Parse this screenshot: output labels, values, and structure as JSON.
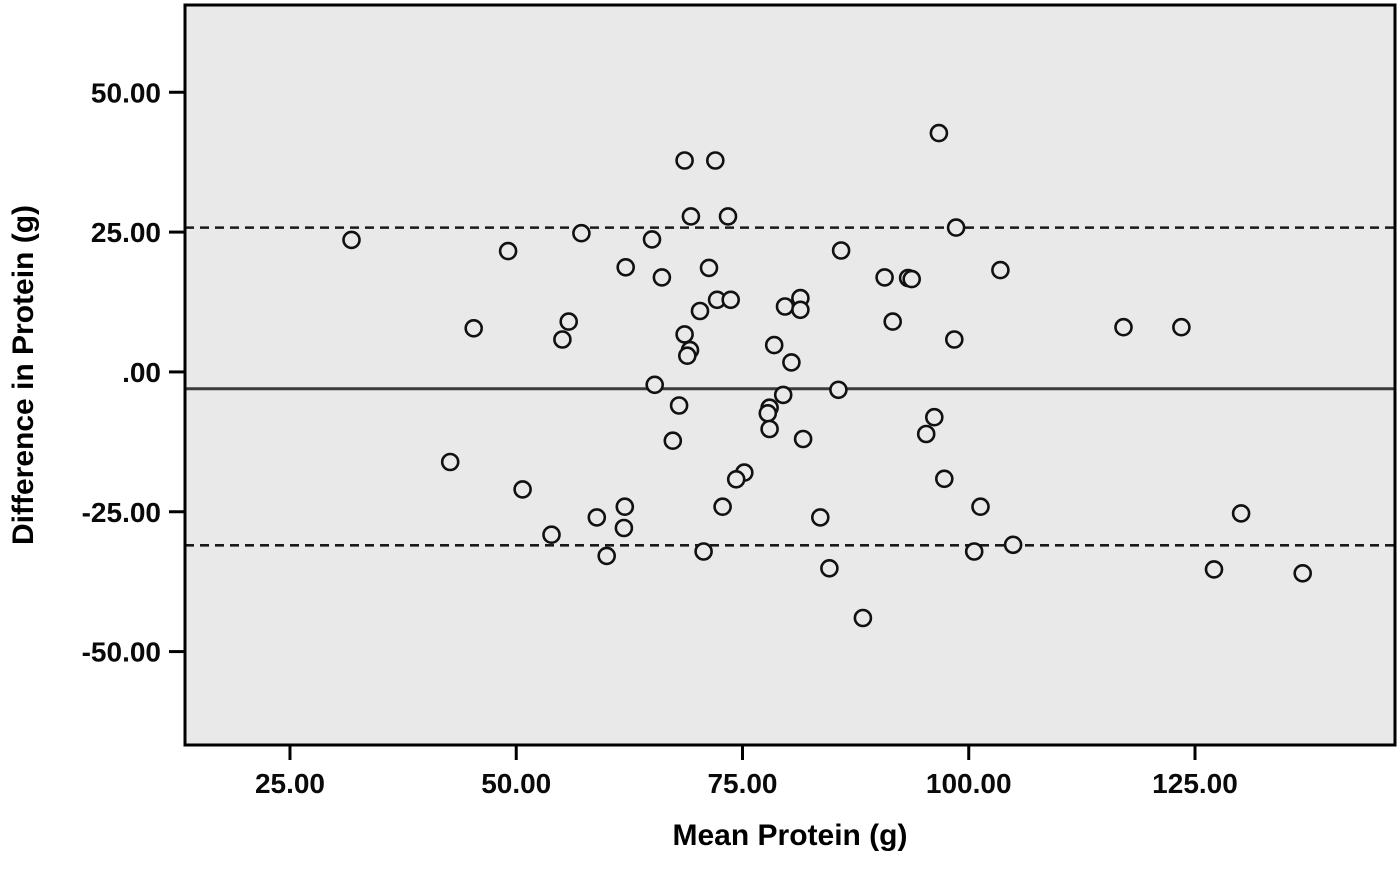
{
  "chart_data": {
    "type": "scatter",
    "title": "",
    "xlabel": "Mean Protein (g)",
    "ylabel": "Difference in Protein (g)",
    "xlim": [
      13.4,
      147.1
    ],
    "ylim": [
      -66.7,
      65.6
    ],
    "x_ticks": [
      25,
      50,
      75,
      100,
      125
    ],
    "x_tick_labels": [
      "25.00",
      "50.00",
      "75.00",
      "100.00",
      "125.00"
    ],
    "y_ticks": [
      50,
      25,
      0,
      -25,
      -50
    ],
    "y_tick_labels": [
      "50.00",
      "25.00",
      ".00",
      "-25.00",
      "-50.00"
    ],
    "grid": false,
    "legend": "none",
    "reference_lines": {
      "mean": -3.0,
      "upper_limit": 25.8,
      "lower_limit": -31.0
    },
    "points": [
      [
        31.8,
        23.6
      ],
      [
        49.1,
        21.6
      ],
      [
        57.2,
        24.8
      ],
      [
        45.3,
        7.8
      ],
      [
        55.8,
        9.0
      ],
      [
        55.1,
        5.8
      ],
      [
        96.7,
        42.7
      ],
      [
        68.6,
        37.8
      ],
      [
        72.0,
        37.8
      ],
      [
        69.3,
        27.8
      ],
      [
        73.4,
        27.8
      ],
      [
        98.6,
        25.8
      ],
      [
        65.0,
        23.7
      ],
      [
        85.9,
        21.7
      ],
      [
        62.1,
        18.7
      ],
      [
        71.3,
        18.6
      ],
      [
        66.1,
        16.9
      ],
      [
        90.7,
        16.9
      ],
      [
        93.3,
        16.8
      ],
      [
        93.7,
        16.6
      ],
      [
        103.5,
        18.2
      ],
      [
        72.2,
        12.9
      ],
      [
        73.7,
        12.9
      ],
      [
        70.3,
        10.9
      ],
      [
        79.7,
        11.7
      ],
      [
        81.4,
        13.2
      ],
      [
        81.4,
        11.1
      ],
      [
        91.6,
        9.0
      ],
      [
        68.6,
        6.7
      ],
      [
        69.2,
        3.9
      ],
      [
        68.9,
        2.9
      ],
      [
        78.5,
        4.8
      ],
      [
        98.4,
        5.8
      ],
      [
        80.4,
        1.7
      ],
      [
        65.3,
        -2.3
      ],
      [
        85.6,
        -3.2
      ],
      [
        79.5,
        -4.1
      ],
      [
        117.1,
        8.0
      ],
      [
        123.5,
        8.0
      ],
      [
        42.7,
        -16.1
      ],
      [
        50.7,
        -21.0
      ],
      [
        53.9,
        -29.1
      ],
      [
        68.0,
        -6.0
      ],
      [
        78.0,
        -6.4
      ],
      [
        77.8,
        -7.4
      ],
      [
        78.0,
        -10.2
      ],
      [
        67.3,
        -12.3
      ],
      [
        81.7,
        -12.0
      ],
      [
        96.2,
        -8.1
      ],
      [
        95.3,
        -11.1
      ],
      [
        75.2,
        -18.0
      ],
      [
        74.3,
        -19.2
      ],
      [
        72.8,
        -24.1
      ],
      [
        62.0,
        -24.1
      ],
      [
        58.9,
        -26.0
      ],
      [
        61.9,
        -27.9
      ],
      [
        83.6,
        -26.0
      ],
      [
        97.3,
        -19.1
      ],
      [
        101.3,
        -24.1
      ],
      [
        60.0,
        -32.9
      ],
      [
        70.7,
        -32.1
      ],
      [
        100.6,
        -32.1
      ],
      [
        84.6,
        -35.1
      ],
      [
        88.3,
        -44.0
      ],
      [
        104.9,
        -30.9
      ],
      [
        130.1,
        -25.3
      ],
      [
        127.1,
        -35.3
      ],
      [
        136.9,
        -36.0
      ]
    ],
    "colors": {
      "plot_background": "#e9e9e9",
      "marker_stroke": "#111111",
      "mean_line": "#3c3c3c",
      "limit_line": "#1a1a1a",
      "border": "#000000"
    }
  }
}
